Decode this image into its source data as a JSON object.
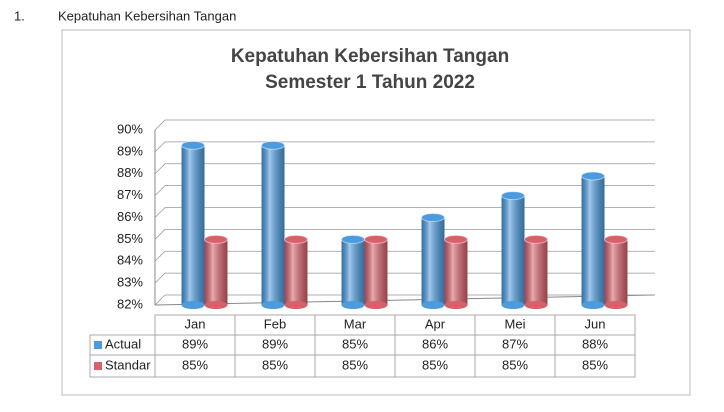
{
  "heading": {
    "number": "1.",
    "text": "Kepatuhan Kebersihan Tangan"
  },
  "chart_data": {
    "type": "bar3d",
    "title": [
      "Kepatuhan Kebersihan Tangan",
      "Semester 1 Tahun 2022"
    ],
    "categories": [
      "Jan",
      "Feb",
      "Mar",
      "Apr",
      "Mei",
      "Jun"
    ],
    "series": [
      {
        "name": "Actual",
        "color": "#4a9be0",
        "values": [
          89.3,
          89.3,
          85,
          86,
          87,
          87.9
        ],
        "value_labels": [
          "89%",
          "89%",
          "85%",
          "86%",
          "87%",
          "88%"
        ]
      },
      {
        "name": "Standar",
        "color": "#d9606a",
        "values": [
          85,
          85,
          85,
          85,
          85,
          85
        ],
        "value_labels": [
          "85%",
          "85%",
          "85%",
          "85%",
          "85%",
          "85%"
        ]
      }
    ],
    "ylim": [
      82,
      90
    ],
    "yticks": [
      {
        "value": 82,
        "label": "82%"
      },
      {
        "value": 83,
        "label": "83%"
      },
      {
        "value": 84,
        "label": "84%"
      },
      {
        "value": 85,
        "label": "85%"
      },
      {
        "value": 86,
        "label": "86%"
      },
      {
        "value": 87,
        "label": "87%"
      },
      {
        "value": 88,
        "label": "88%"
      },
      {
        "value": 89,
        "label": "89%"
      },
      {
        "value": 90,
        "label": "90%"
      }
    ],
    "grid": true
  }
}
